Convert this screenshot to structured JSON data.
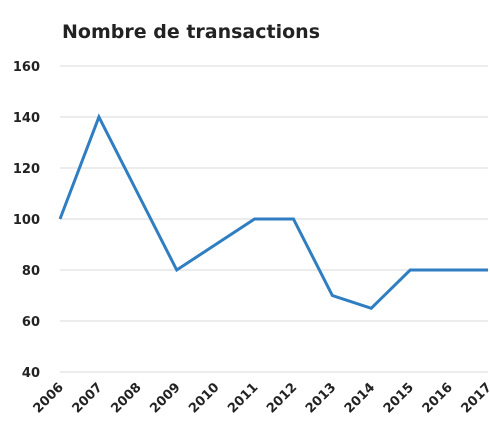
{
  "chart_data": {
    "type": "line",
    "title": "Nombre de transactions",
    "categories": [
      "2006",
      "2007",
      "2008",
      "2009",
      "2010",
      "2011",
      "2012",
      "2013",
      "2014",
      "2015",
      "2016",
      "2017"
    ],
    "values": [
      100,
      140,
      110,
      80,
      90,
      100,
      100,
      70,
      65,
      80,
      80,
      80
    ],
    "color": "#2f7ec1",
    "ylim": [
      40,
      160
    ],
    "yticks": [
      40,
      60,
      80,
      100,
      120,
      140,
      160
    ],
    "grid": true
  }
}
